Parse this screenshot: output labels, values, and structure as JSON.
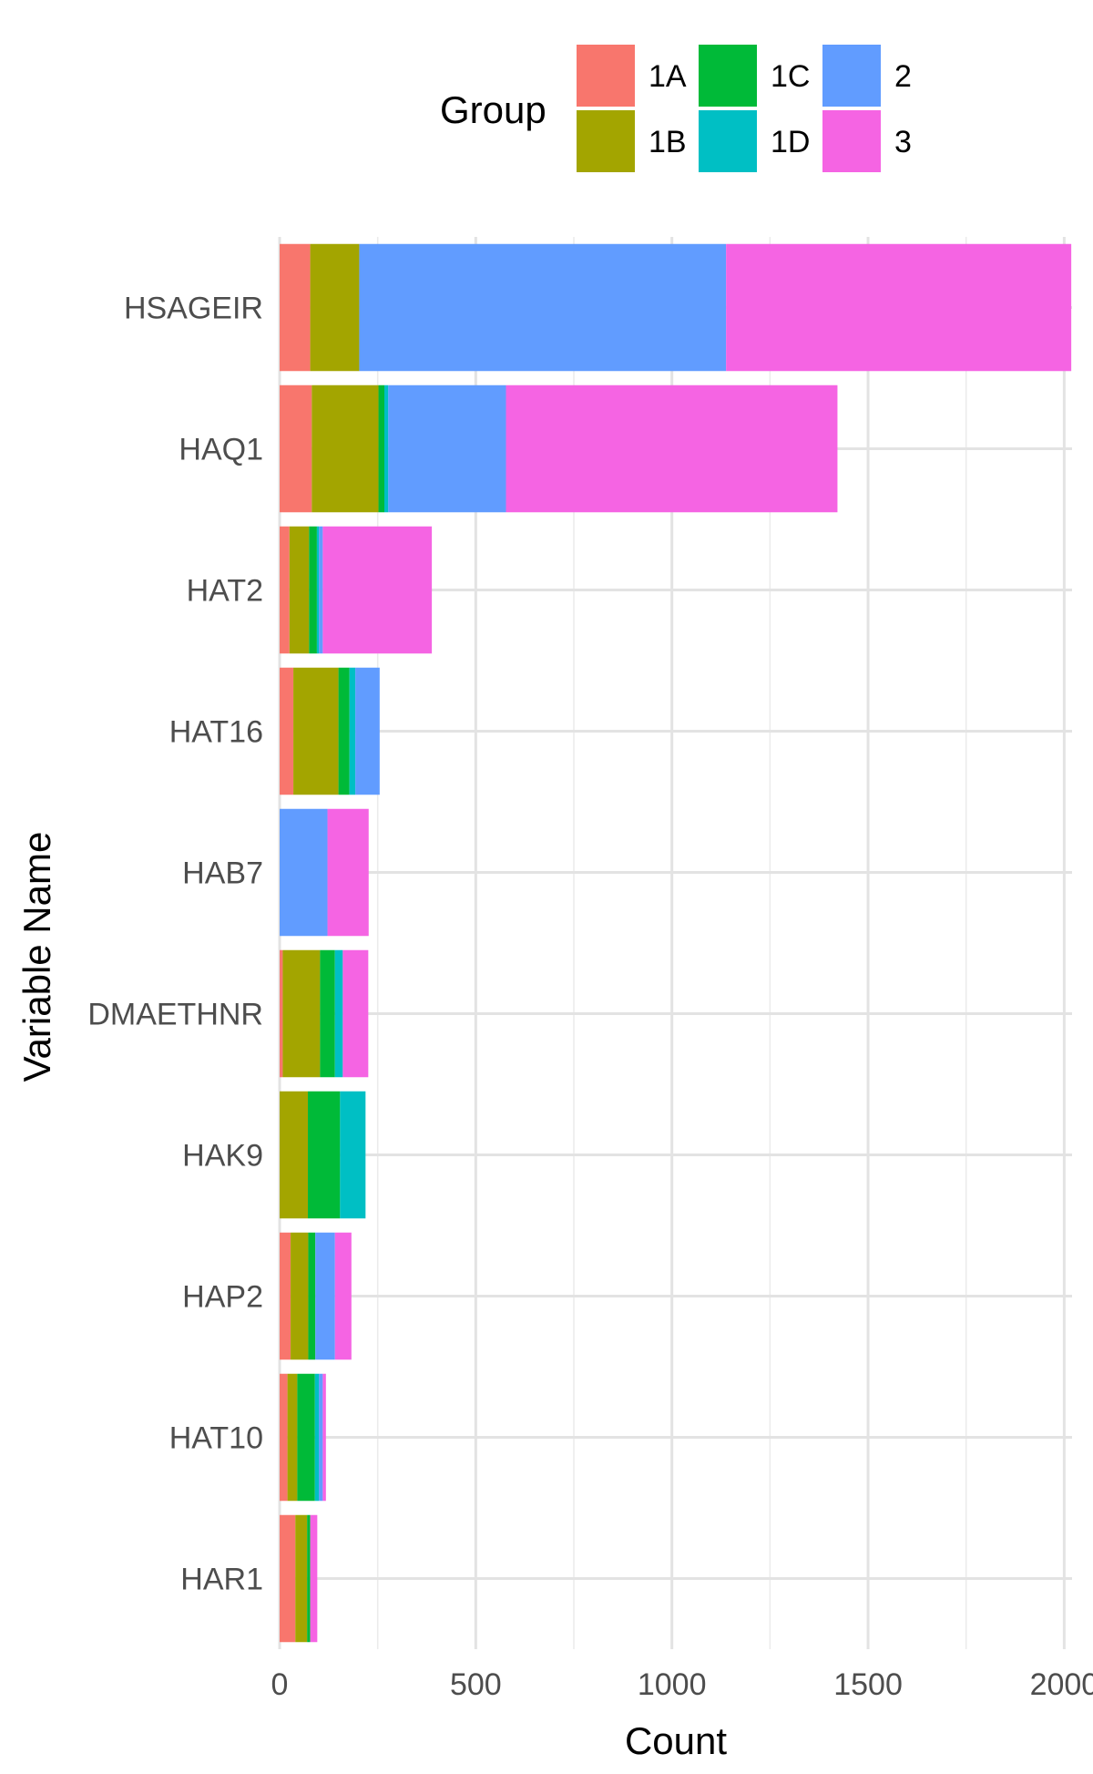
{
  "chart_data": {
    "type": "bar",
    "orientation": "horizontal",
    "stacked": true,
    "categories": [
      "HSAGEIR",
      "HAQ1",
      "HAT2",
      "HAT16",
      "HAB7",
      "DMAETHNR",
      "HAK9",
      "HAP2",
      "HAT10",
      "HAR1"
    ],
    "series": [
      {
        "name": "1A",
        "color": "#F8766D",
        "values": [
          78,
          82,
          25,
          35,
          0,
          8,
          0,
          28,
          20,
          40
        ]
      },
      {
        "name": "1B",
        "color": "#A3A500",
        "values": [
          125,
          170,
          50,
          115,
          0,
          95,
          72,
          45,
          25,
          30
        ]
      },
      {
        "name": "1C",
        "color": "#00BA38",
        "values": [
          0,
          15,
          20,
          28,
          0,
          38,
          82,
          18,
          45,
          8
        ]
      },
      {
        "name": "1D",
        "color": "#00BFC4",
        "values": [
          0,
          10,
          5,
          15,
          0,
          20,
          65,
          0,
          10,
          0
        ]
      },
      {
        "name": "2",
        "color": "#619CFF",
        "values": [
          935,
          300,
          10,
          62,
          122,
          0,
          0,
          50,
          10,
          0
        ]
      },
      {
        "name": "3",
        "color": "#F564E3",
        "values": [
          880,
          845,
          278,
          0,
          105,
          65,
          0,
          42,
          8,
          18
        ]
      }
    ],
    "xlabel": "Count",
    "ylabel": "Variable Name",
    "xlim": [
      0,
      2020
    ],
    "xticks": [
      "0",
      "500",
      "1000",
      "1500",
      "2000"
    ],
    "grid": true,
    "legend": {
      "title": "Group",
      "position": "top"
    }
  }
}
